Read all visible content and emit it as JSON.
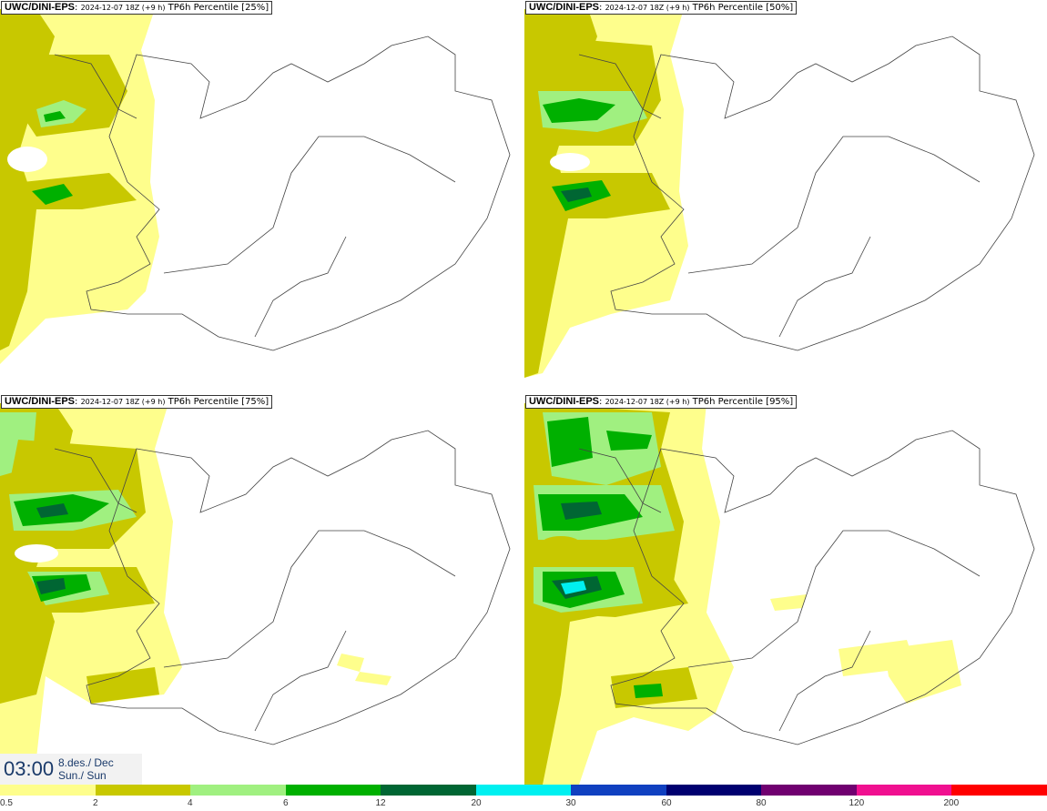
{
  "panels": [
    {
      "source": "UWC/DINI-EPS",
      "run": "2024-12-07 18Z (+9 h)",
      "field": "TP6h Percentile [25%]"
    },
    {
      "source": "UWC/DINI-EPS",
      "run": "2024-12-07 18Z (+9 h)",
      "field": "TP6h Percentile [50%]"
    },
    {
      "source": "UWC/DINI-EPS",
      "run": "2024-12-07 18Z (+9 h)",
      "field": "TP6h Percentile [75%]"
    },
    {
      "source": "UWC/DINI-EPS",
      "run": "2024-12-07 18Z (+9 h)",
      "field": "TP6h Percentile [95%]"
    }
  ],
  "valid_time": {
    "time": "03:00",
    "date_line1": "8.des./ Dec",
    "date_line2": "Sun./ Sun"
  },
  "legend": {
    "colors": [
      "#fefe8c",
      "#c8c800",
      "#a0f080",
      "#00b000",
      "#006633",
      "#00f0f0",
      "#1040c0",
      "#000070",
      "#700070",
      "#f01090",
      "#ff0000"
    ],
    "labels": [
      "0.5",
      "2",
      "4",
      "6",
      "12",
      "20",
      "30",
      "60",
      "80",
      "120",
      "200"
    ]
  }
}
